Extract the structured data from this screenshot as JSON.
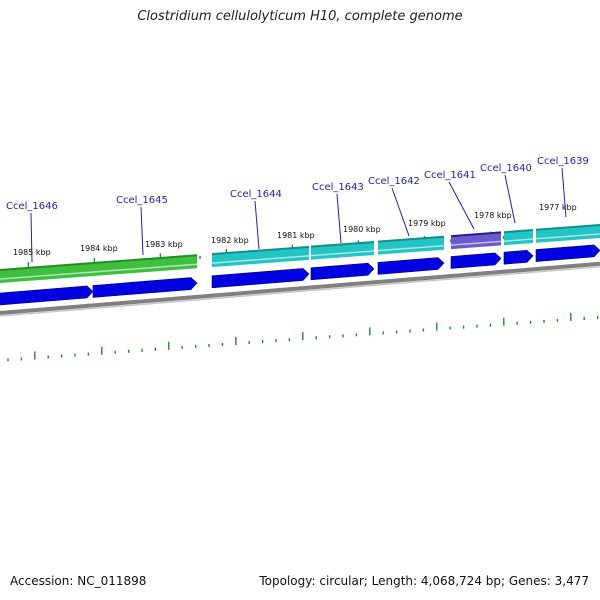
{
  "title": "Clostridium cellulolyticum H10, complete genome",
  "footer": {
    "accession": "Accession: NC_011898",
    "summary": "Topology: circular; Length: 4,068,724 bp; Genes: 3,477"
  },
  "colors": {
    "gene_label": "#1f1fb5",
    "tick": "#1f8f1f",
    "cds_strand": "#0000e0",
    "gene_cyan": "#22c4c4",
    "gene_green": "#3fbf3f",
    "gene_purple": "#6a5acd",
    "backbone": "#808080"
  },
  "genes": [
    {
      "name": "Ccel_1646"
    },
    {
      "name": "Ccel_1645"
    },
    {
      "name": "Ccel_1644"
    },
    {
      "name": "Ccel_1643"
    },
    {
      "name": "Ccel_1642"
    },
    {
      "name": "Ccel_1641"
    },
    {
      "name": "Ccel_1640"
    },
    {
      "name": "Ccel_1639"
    }
  ],
  "kbp_ticks": [
    {
      "label": "1985 kbp"
    },
    {
      "label": "1984 kbp"
    },
    {
      "label": "1983 kbp"
    },
    {
      "label": "1982 kbp"
    },
    {
      "label": "1981 kbp"
    },
    {
      "label": "1980 kbp"
    },
    {
      "label": "1979 kbp"
    },
    {
      "label": "1978 kbp"
    },
    {
      "label": "1977 kbp"
    }
  ]
}
